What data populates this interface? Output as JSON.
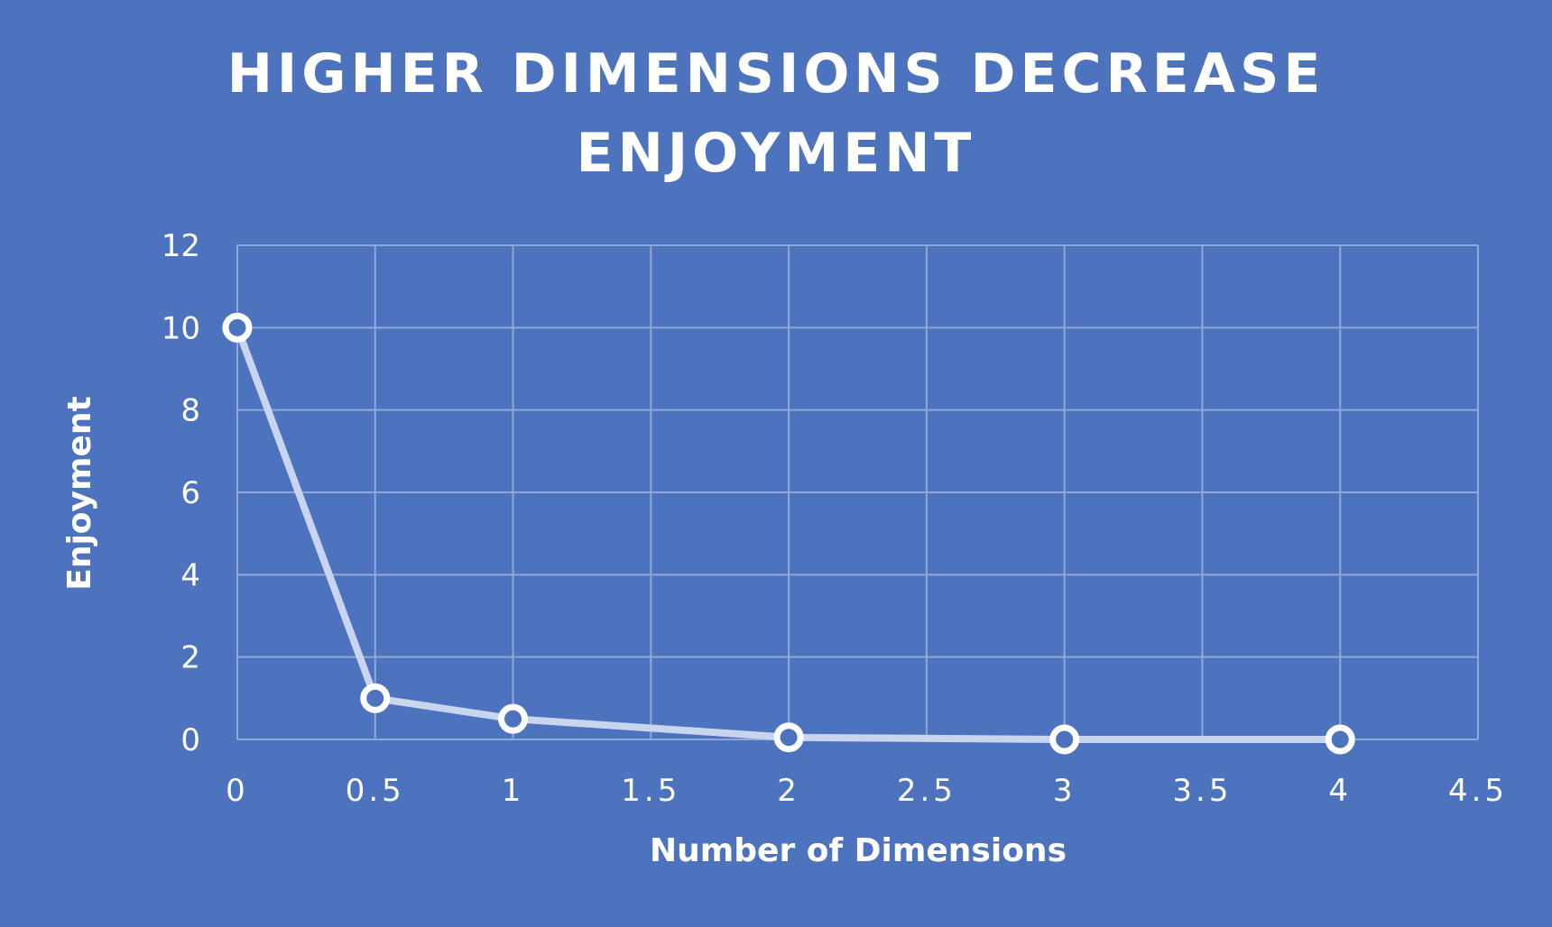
{
  "colors": {
    "background": "#4E73BE",
    "gridline": "#8FA8DA",
    "series_line": "#C9D5EF",
    "marker_fill": "#4E73BE",
    "marker_stroke": "#ffffff",
    "text": "#ffffff"
  },
  "chart_data": {
    "type": "line",
    "title_lines": [
      "HIGHER DIMENSIONS DECREASE",
      "ENJOYMENT"
    ],
    "title": "HIGHER DIMENSIONS DECREASE ENJOYMENT",
    "xlabel": "Number of Dimensions",
    "ylabel": "Enjoyment",
    "xlim": [
      0,
      4.5
    ],
    "ylim": [
      0,
      12
    ],
    "x_ticks": [
      0,
      0.5,
      1,
      1.5,
      2,
      2.5,
      3,
      3.5,
      4,
      4.5
    ],
    "x_tick_labels": [
      "0",
      "0.5",
      "1",
      "1.5",
      "2",
      "2.5",
      "3",
      "3.5",
      "4",
      "4.5"
    ],
    "y_ticks": [
      0,
      2,
      4,
      6,
      8,
      10,
      12
    ],
    "y_tick_labels": [
      "0",
      "2",
      "4",
      "6",
      "8",
      "10",
      "12"
    ],
    "grid": true,
    "legend": "none",
    "series": [
      {
        "x": [
          0,
          0.5,
          1,
          2,
          3,
          4
        ],
        "y": [
          10,
          1,
          0.5,
          0.05,
          0,
          0
        ]
      }
    ]
  }
}
